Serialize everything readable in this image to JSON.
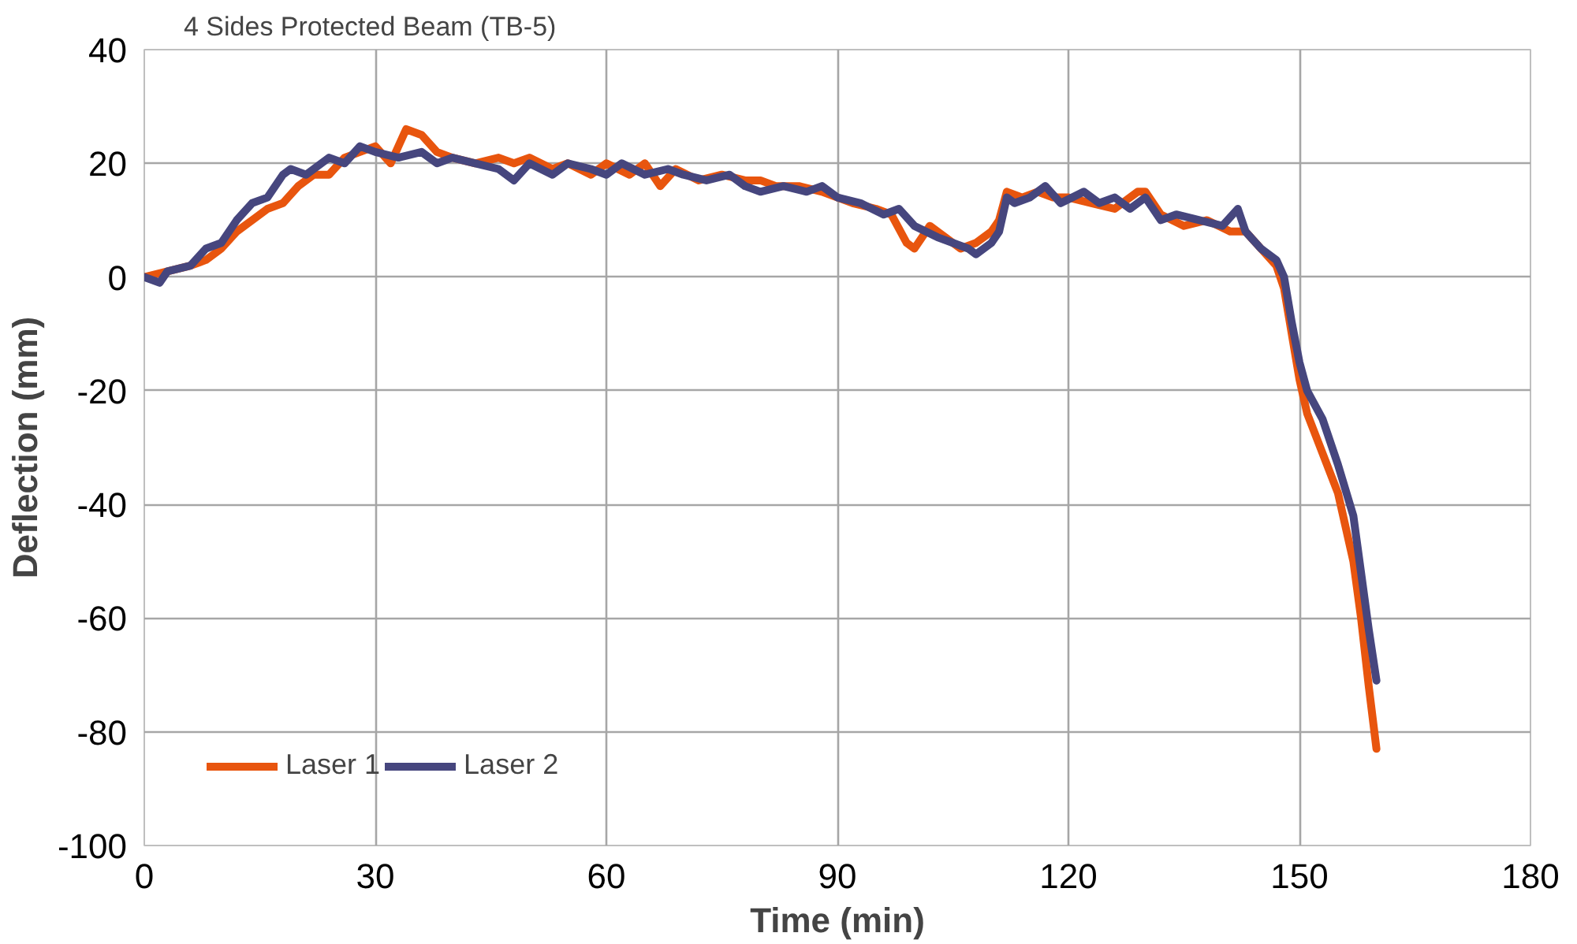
{
  "chart_data": {
    "type": "line",
    "title": "4 Sides Protected Beam (TB-5)",
    "xlabel": "Time (min)",
    "ylabel": "Deflection (mm)",
    "xlim": [
      0,
      180
    ],
    "ylim": [
      -100,
      40
    ],
    "xticks": [
      0,
      30,
      60,
      90,
      120,
      150,
      180
    ],
    "yticks": [
      -100,
      -80,
      -60,
      -40,
      -20,
      0,
      20,
      40
    ],
    "grid": true,
    "legend": "bottom left",
    "marker": "none",
    "line_style": "solid",
    "series": [
      {
        "name": "Laser 1",
        "color": "#e8550e",
        "x": [
          0,
          3,
          6,
          8,
          10,
          12,
          14,
          16,
          18,
          20,
          22,
          24,
          26,
          28,
          30,
          32,
          34,
          36,
          38,
          40,
          43,
          46,
          48,
          50,
          53,
          55,
          58,
          60,
          63,
          65,
          67,
          69,
          72,
          75,
          78,
          80,
          82,
          85,
          88,
          90,
          92,
          95,
          97,
          99,
          100,
          102,
          104,
          106,
          108,
          110,
          111,
          112,
          114,
          116,
          118,
          120,
          123,
          126,
          129,
          130,
          132,
          135,
          138,
          141,
          143,
          145,
          147,
          148,
          149,
          150,
          151,
          153,
          155,
          157,
          158,
          159,
          160
        ],
        "values": [
          0,
          1,
          2,
          3,
          5,
          8,
          10,
          12,
          13,
          16,
          18,
          18,
          21,
          22,
          23,
          20,
          26,
          25,
          22,
          21,
          20,
          21,
          20,
          21,
          19,
          20,
          18,
          20,
          18,
          20,
          16,
          19,
          17,
          18,
          17,
          17,
          16,
          16,
          15,
          14,
          13,
          12,
          11,
          6,
          5,
          9,
          7,
          5,
          6,
          8,
          10,
          15,
          14,
          15,
          14,
          14,
          13,
          12,
          15,
          15,
          11,
          9,
          10,
          8,
          8,
          5,
          2,
          -2,
          -10,
          -18,
          -24,
          -31,
          -38,
          -50,
          -60,
          -72,
          -83
        ]
      },
      {
        "name": "Laser 2",
        "color": "#46467e",
        "x": [
          0,
          2,
          3,
          6,
          8,
          10,
          12,
          14,
          16,
          18,
          19,
          21,
          24,
          26,
          28,
          30,
          33,
          36,
          38,
          40,
          43,
          46,
          48,
          50,
          53,
          55,
          58,
          60,
          62,
          65,
          68,
          70,
          73,
          76,
          78,
          80,
          83,
          86,
          88,
          90,
          93,
          96,
          98,
          100,
          103,
          105,
          107,
          108,
          110,
          111,
          112,
          113,
          115,
          117,
          119,
          122,
          124,
          126,
          128,
          130,
          132,
          134,
          137,
          140,
          142,
          143,
          145,
          147,
          148,
          149,
          150,
          151,
          153,
          155,
          157,
          158,
          159,
          160
        ],
        "values": [
          0,
          -1,
          1,
          2,
          5,
          6,
          10,
          13,
          14,
          18,
          19,
          18,
          21,
          20,
          23,
          22,
          21,
          22,
          20,
          21,
          20,
          19,
          17,
          20,
          18,
          20,
          19,
          18,
          20,
          18,
          19,
          18,
          17,
          18,
          16,
          15,
          16,
          15,
          16,
          14,
          13,
          11,
          12,
          9,
          7,
          6,
          5,
          4,
          6,
          8,
          14,
          13,
          14,
          16,
          13,
          15,
          13,
          14,
          12,
          14,
          10,
          11,
          10,
          9,
          12,
          8,
          5,
          3,
          0,
          -8,
          -15,
          -20,
          -25,
          -33,
          -42,
          -52,
          -62,
          -71
        ]
      }
    ]
  }
}
